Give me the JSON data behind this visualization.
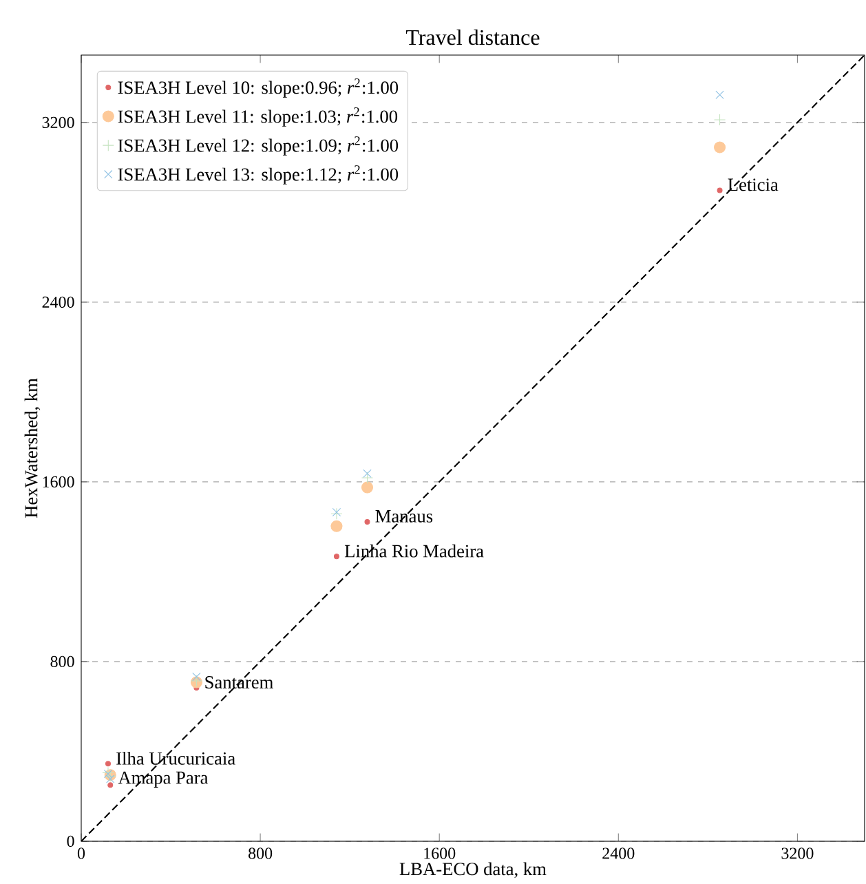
{
  "chart_data": {
    "type": "scatter",
    "title": "Travel distance",
    "xlabel": "LBA-ECO data, km",
    "ylabel": "HexWatershed, km",
    "x": [
      2853,
      1278,
      1141,
      515,
      120,
      130
    ],
    "series": [
      {
        "name": "ISEA3H Level 10: slope:0.96; *r*$^{2}$:1.00",
        "color": "#e06666",
        "marker": "circle",
        "values": [
          2898,
          1422,
          1268,
          683,
          345,
          250
        ]
      },
      {
        "name": "ISEA3H Level 11: slope:1.03; *r*$^{2}$:1.00",
        "color": "#fdc999",
        "marker": "circle",
        "values": [
          3089,
          1575,
          1403,
          708,
          null,
          295
        ]
      },
      {
        "name": "ISEA3H Level 12: slope:1.09; *r*$^{2}$:1.00",
        "color": "#c5e3c0",
        "marker": "plus",
        "values": [
          3212,
          1618,
          1458,
          714,
          305,
          290
        ]
      },
      {
        "name": "ISEA3H Level 13: slope:1.12; *r*$^{2}$:1.00",
        "color": "#8fc1e3",
        "marker": "cross",
        "values": [
          3323,
          1637,
          1465,
          732,
          300,
          277
        ]
      },
      {
        "type": "line",
        "color": "#000000",
        "line_style": "dashed",
        "marker": "none",
        "x": [
          0,
          3500
        ],
        "values": [
          0,
          3500
        ]
      }
    ],
    "annotations": [
      {
        "text": "Leticia",
        "x": 2853,
        "y": 2898
      },
      {
        "text": "Manaus",
        "x": 1278,
        "y": 1422
      },
      {
        "text": "Linha Rio Madeira",
        "x": 1141,
        "y": 1268
      },
      {
        "text": "Santarem",
        "x": 515,
        "y": 683
      },
      {
        "text": "Ilha Urucuricaia",
        "x": 120,
        "y": 345
      },
      {
        "text": "Amapa Para",
        "x": 130,
        "y": 250
      }
    ],
    "xlim": [
      0,
      3500
    ],
    "ylim": [
      0,
      3500
    ],
    "xticks": [
      0,
      800,
      1600,
      2400,
      3200
    ],
    "yticks": [
      0,
      800,
      1600,
      2400,
      3200
    ],
    "grid": "y",
    "legend": "top left"
  }
}
